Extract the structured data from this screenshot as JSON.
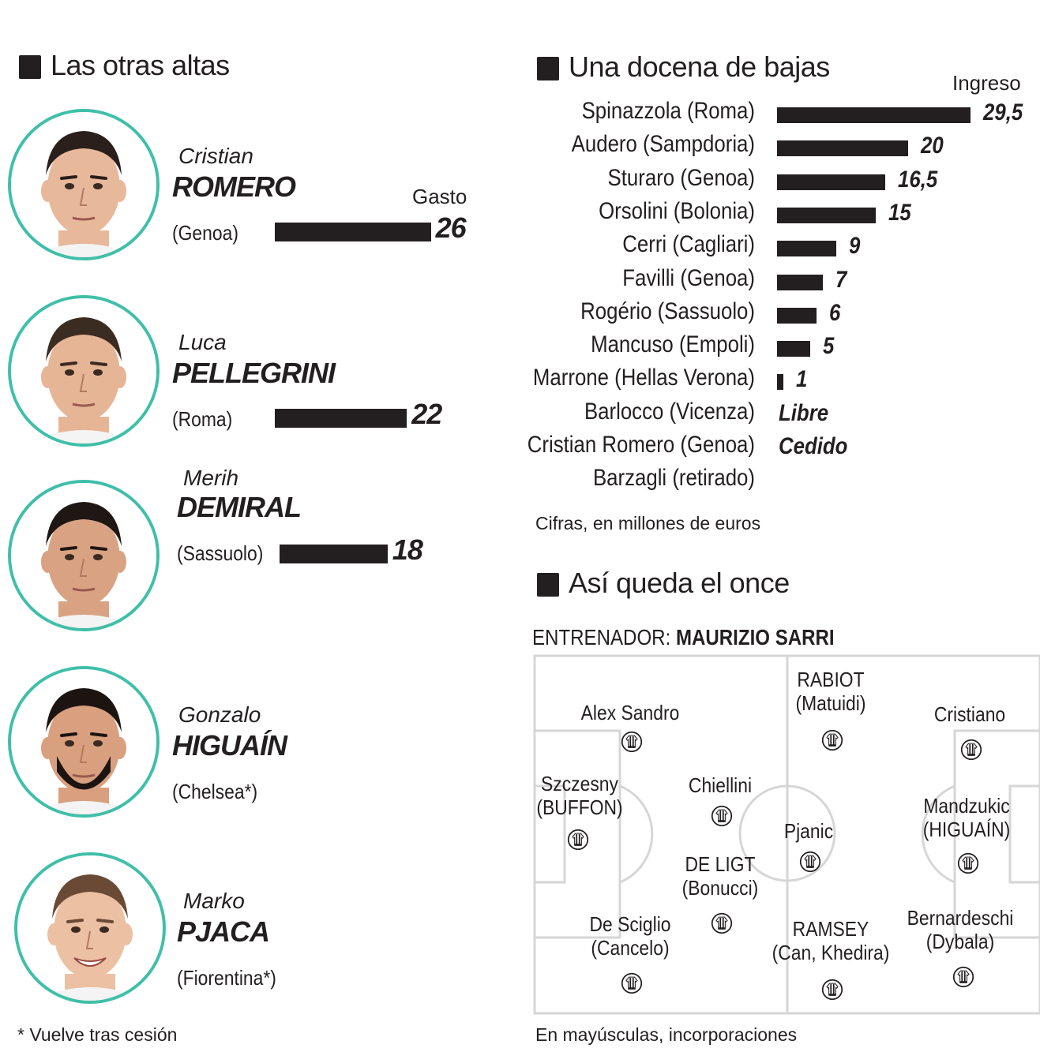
{
  "left": {
    "title": "Las otras altas",
    "gasto_label": "Gasto",
    "players": [
      {
        "first": "Cristian",
        "last": "ROMERO",
        "club": "(Genoa)",
        "value": "26",
        "amount": 26
      },
      {
        "first": "Luca",
        "last": "PELLEGRINI",
        "club": "(Roma)",
        "value": "22",
        "amount": 22
      },
      {
        "first": "Merih",
        "last": "DEMIRAL",
        "club": "(Sassuolo)",
        "value": "18",
        "amount": 18
      },
      {
        "first": "Gonzalo",
        "last": "HIGUAÍN",
        "club": "(Chelsea*)",
        "value": "",
        "amount": null
      },
      {
        "first": "Marko",
        "last": "PJACA",
        "club": "(Fiorentina*)",
        "value": "",
        "amount": null
      }
    ],
    "footnote": "* Vuelve tras cesión"
  },
  "bajas": {
    "title": "Una docena de bajas",
    "ingreso_label": "Ingreso",
    "rows": [
      {
        "name": "Spinazzola",
        "club": "(Roma)",
        "value": "29,5",
        "amount": 29.5
      },
      {
        "name": "Audero",
        "club": "(Sampdoria)",
        "value": "20",
        "amount": 20
      },
      {
        "name": "Sturaro",
        "club": "(Genoa)",
        "value": "16,5",
        "amount": 16.5
      },
      {
        "name": "Orsolini",
        "club": "(Bolonia)",
        "value": "15",
        "amount": 15
      },
      {
        "name": "Cerri",
        "club": "(Cagliari)",
        "value": "9",
        "amount": 9
      },
      {
        "name": "Favilli",
        "club": "(Genoa)",
        "value": "7",
        "amount": 7
      },
      {
        "name": "Rogério",
        "club": "(Sassuolo)",
        "value": "6",
        "amount": 6
      },
      {
        "name": "Mancuso",
        "club": "(Empoli)",
        "value": "5",
        "amount": 5
      },
      {
        "name": "Marrone",
        "club": "(Hellas Verona)",
        "value": "1",
        "amount": 1
      },
      {
        "name": "Barlocco",
        "club": "(Vicenza)",
        "value": "Libre",
        "amount": null
      },
      {
        "name": "Cristian Romero",
        "club": "(Genoa)",
        "value": "Cedido",
        "amount": null
      },
      {
        "name": "Barzagli",
        "club": "(retirado)",
        "value": "",
        "amount": null
      }
    ],
    "note": "Cifras, en millones de euros"
  },
  "once": {
    "title": "Así queda el once",
    "coach_label": "ENTRENADOR:",
    "coach_name": "MAURIZIO SARRI",
    "players": [
      {
        "line1": "Szczesny",
        "line2": "(BUFFON)"
      },
      {
        "line1": "Alex Sandro",
        "line2": ""
      },
      {
        "line1": "Chiellini",
        "line2": ""
      },
      {
        "line1": "DE LIGT",
        "line2": "(Bonucci)"
      },
      {
        "line1": "De Sciglio",
        "line2": "(Cancelo)"
      },
      {
        "line1": "RABIOT",
        "line2": "(Matuidi)"
      },
      {
        "line1": "Pjanic",
        "line2": ""
      },
      {
        "line1": "RAMSEY",
        "line2": "(Can, Khedira)"
      },
      {
        "line1": "Cristiano",
        "line2": ""
      },
      {
        "line1": "Mandzukic",
        "line2": "(HIGUAÍN)"
      },
      {
        "line1": "Bernardeschi",
        "line2": "(Dybala)"
      }
    ],
    "footnote": "En mayúsculas, incorporaciones"
  },
  "colors": {
    "ink": "#231f20",
    "ring": "#3fbfa9",
    "pitch_line": "#d6d6d6"
  },
  "icons": [
    "player-photo",
    "juventus-shirt-icon"
  ]
}
